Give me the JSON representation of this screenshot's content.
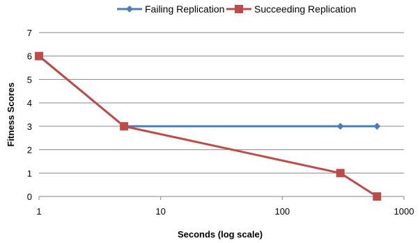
{
  "chart_data": {
    "type": "line",
    "xlabel": "Seconds (log scale)",
    "ylabel": "Fitness Scores",
    "x_scale": "log",
    "xlim": [
      1,
      1000
    ],
    "ylim": [
      0,
      7
    ],
    "x_ticks": [
      1,
      10,
      100,
      1000
    ],
    "x_tick_labels": [
      "1",
      "10",
      "100",
      "1000"
    ],
    "y_ticks": [
      0,
      1,
      2,
      3,
      4,
      5,
      6,
      7
    ],
    "y_tick_labels": [
      "0",
      "1",
      "2",
      "3",
      "4",
      "5",
      "6",
      "7"
    ],
    "grid": "horizontal",
    "legend_position": "top",
    "series": [
      {
        "name": "Failing Replication",
        "color": "#4a7ebb",
        "marker": "diamond",
        "points": [
          {
            "x": 1,
            "y": 6
          },
          {
            "x": 5,
            "y": 3
          },
          {
            "x": 300,
            "y": 3
          },
          {
            "x": 600,
            "y": 3
          }
        ]
      },
      {
        "name": "Succeeding Replication",
        "color": "#be4b48",
        "marker": "square",
        "points": [
          {
            "x": 1,
            "y": 6
          },
          {
            "x": 5,
            "y": 3
          },
          {
            "x": 300,
            "y": 1
          },
          {
            "x": 600,
            "y": 0
          }
        ]
      }
    ]
  }
}
